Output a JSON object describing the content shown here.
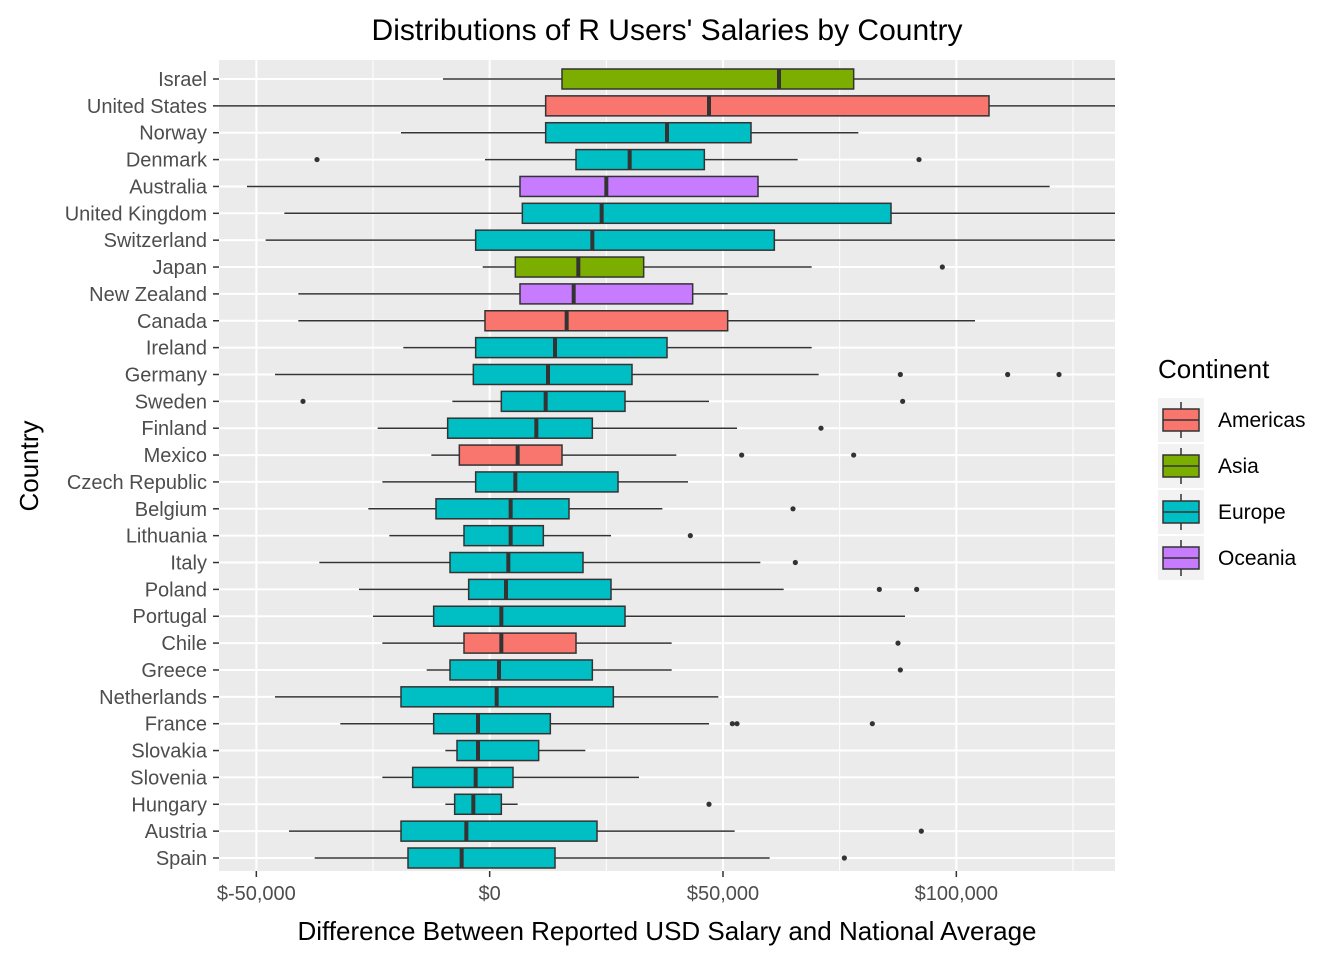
{
  "chart_data": {
    "type": "boxplot",
    "title": "Distributions of R Users' Salaries by Country",
    "xlabel": "Difference Between Reported USD Salary and National Average",
    "ylabel": "Country",
    "xlim": [
      -58000,
      134000
    ],
    "x_ticks": [
      -50000,
      0,
      50000,
      100000
    ],
    "x_tick_labels": [
      "$-50,000",
      "$0",
      "$50,000",
      "$100,000"
    ],
    "grid": true,
    "legend": {
      "title": "Continent",
      "position": "right",
      "entries": [
        {
          "name": "Americas",
          "color": "#F8766D"
        },
        {
          "name": "Asia",
          "color": "#7CAE00"
        },
        {
          "name": "Europe",
          "color": "#00BFC4"
        },
        {
          "name": "Oceania",
          "color": "#C77CFF"
        }
      ]
    },
    "series": [
      {
        "country": "Israel",
        "continent": "Asia",
        "whisker_low": -10000,
        "q1": 15500,
        "median": 62000,
        "q3": 78000,
        "whisker_high": 134000,
        "outliers": []
      },
      {
        "country": "United States",
        "continent": "Americas",
        "whisker_low": -58000,
        "q1": 12000,
        "median": 47000,
        "q3": 107000,
        "whisker_high": 134000,
        "outliers": []
      },
      {
        "country": "Norway",
        "continent": "Europe",
        "whisker_low": -19000,
        "q1": 12000,
        "median": 38000,
        "q3": 56000,
        "whisker_high": 79000,
        "outliers": []
      },
      {
        "country": "Denmark",
        "continent": "Europe",
        "whisker_low": -1000,
        "q1": 18500,
        "median": 30000,
        "q3": 46000,
        "whisker_high": 66000,
        "outliers": [
          -37000,
          92000
        ]
      },
      {
        "country": "Australia",
        "continent": "Oceania",
        "whisker_low": -52000,
        "q1": 6500,
        "median": 25000,
        "q3": 57500,
        "whisker_high": 120000,
        "outliers": []
      },
      {
        "country": "United Kingdom",
        "continent": "Europe",
        "whisker_low": -44000,
        "q1": 7000,
        "median": 24000,
        "q3": 86000,
        "whisker_high": 134000,
        "outliers": []
      },
      {
        "country": "Switzerland",
        "continent": "Europe",
        "whisker_low": -48000,
        "q1": -3000,
        "median": 22000,
        "q3": 61000,
        "whisker_high": 134000,
        "outliers": []
      },
      {
        "country": "Japan",
        "continent": "Asia",
        "whisker_low": -1500,
        "q1": 5500,
        "median": 19000,
        "q3": 33000,
        "whisker_high": 69000,
        "outliers": [
          97000
        ]
      },
      {
        "country": "New Zealand",
        "continent": "Oceania",
        "whisker_low": -41000,
        "q1": 6500,
        "median": 18000,
        "q3": 43500,
        "whisker_high": 51000,
        "outliers": []
      },
      {
        "country": "Canada",
        "continent": "Americas",
        "whisker_low": -41000,
        "q1": -1000,
        "median": 16500,
        "q3": 51000,
        "whisker_high": 104000,
        "outliers": []
      },
      {
        "country": "Ireland",
        "continent": "Europe",
        "whisker_low": -18500,
        "q1": -3000,
        "median": 14000,
        "q3": 38000,
        "whisker_high": 69000,
        "outliers": []
      },
      {
        "country": "Germany",
        "continent": "Europe",
        "whisker_low": -46000,
        "q1": -3500,
        "median": 12500,
        "q3": 30500,
        "whisker_high": 70500,
        "outliers": [
          88000,
          111000,
          122000
        ]
      },
      {
        "country": "Sweden",
        "continent": "Europe",
        "whisker_low": -8000,
        "q1": 2500,
        "median": 12000,
        "q3": 29000,
        "whisker_high": 47000,
        "outliers": [
          -40000,
          88500
        ]
      },
      {
        "country": "Finland",
        "continent": "Europe",
        "whisker_low": -24000,
        "q1": -9000,
        "median": 10000,
        "q3": 22000,
        "whisker_high": 53000,
        "outliers": [
          71000
        ]
      },
      {
        "country": "Mexico",
        "continent": "Americas",
        "whisker_low": -12500,
        "q1": -6500,
        "median": 6000,
        "q3": 15500,
        "whisker_high": 40000,
        "outliers": [
          54000,
          78000
        ]
      },
      {
        "country": "Czech Republic",
        "continent": "Europe",
        "whisker_low": -23000,
        "q1": -3000,
        "median": 5500,
        "q3": 27500,
        "whisker_high": 42500,
        "outliers": []
      },
      {
        "country": "Belgium",
        "continent": "Europe",
        "whisker_low": -26000,
        "q1": -11500,
        "median": 4500,
        "q3": 17000,
        "whisker_high": 37000,
        "outliers": [
          65000
        ]
      },
      {
        "country": "Lithuania",
        "continent": "Europe",
        "whisker_low": -21500,
        "q1": -5500,
        "median": 4500,
        "q3": 11500,
        "whisker_high": 26000,
        "outliers": [
          43000
        ]
      },
      {
        "country": "Italy",
        "continent": "Europe",
        "whisker_low": -36500,
        "q1": -8500,
        "median": 4000,
        "q3": 20000,
        "whisker_high": 58000,
        "outliers": [
          65500
        ]
      },
      {
        "country": "Poland",
        "continent": "Europe",
        "whisker_low": -28000,
        "q1": -4500,
        "median": 3500,
        "q3": 26000,
        "whisker_high": 63000,
        "outliers": [
          83500,
          91500
        ]
      },
      {
        "country": "Portugal",
        "continent": "Europe",
        "whisker_low": -25000,
        "q1": -12000,
        "median": 2500,
        "q3": 29000,
        "whisker_high": 89000,
        "outliers": []
      },
      {
        "country": "Chile",
        "continent": "Americas",
        "whisker_low": -23000,
        "q1": -5500,
        "median": 2500,
        "q3": 18500,
        "whisker_high": 39000,
        "outliers": [
          87500
        ]
      },
      {
        "country": "Greece",
        "continent": "Europe",
        "whisker_low": -13500,
        "q1": -8500,
        "median": 2000,
        "q3": 22000,
        "whisker_high": 39000,
        "outliers": [
          88000
        ]
      },
      {
        "country": "Netherlands",
        "continent": "Europe",
        "whisker_low": -46000,
        "q1": -19000,
        "median": 1500,
        "q3": 26500,
        "whisker_high": 49000,
        "outliers": []
      },
      {
        "country": "France",
        "continent": "Europe",
        "whisker_low": -32000,
        "q1": -12000,
        "median": -2500,
        "q3": 13000,
        "whisker_high": 47000,
        "outliers": [
          52000,
          53000,
          82000
        ]
      },
      {
        "country": "Slovakia",
        "continent": "Europe",
        "whisker_low": -9500,
        "q1": -7000,
        "median": -2500,
        "q3": 10500,
        "whisker_high": 20500,
        "outliers": []
      },
      {
        "country": "Slovenia",
        "continent": "Europe",
        "whisker_low": -23000,
        "q1": -16500,
        "median": -3000,
        "q3": 5000,
        "whisker_high": 32000,
        "outliers": []
      },
      {
        "country": "Hungary",
        "continent": "Europe",
        "whisker_low": -9500,
        "q1": -7500,
        "median": -3500,
        "q3": 2500,
        "whisker_high": 6000,
        "outliers": [
          47000
        ]
      },
      {
        "country": "Austria",
        "continent": "Europe",
        "whisker_low": -43000,
        "q1": -19000,
        "median": -5000,
        "q3": 23000,
        "whisker_high": 52500,
        "outliers": [
          92500
        ]
      },
      {
        "country": "Spain",
        "continent": "Europe",
        "whisker_low": -37500,
        "q1": -17500,
        "median": -6000,
        "q3": 14000,
        "whisker_high": 60000,
        "outliers": [
          76000
        ]
      }
    ]
  }
}
